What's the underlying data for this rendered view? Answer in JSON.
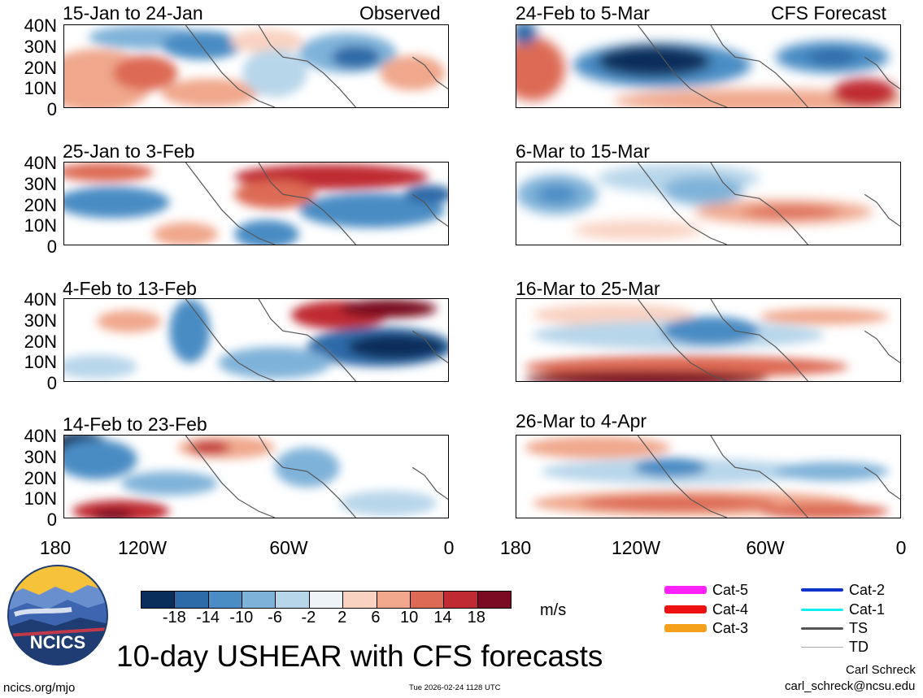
{
  "panels": [
    {
      "label": "15-Jan to 24-Jan",
      "corner": "Observed"
    },
    {
      "label": "24-Feb to 5-Mar",
      "corner": "CFS Forecast"
    },
    {
      "label": "25-Jan to 3-Feb",
      "corner": ""
    },
    {
      "label": "6-Mar to 15-Mar",
      "corner": ""
    },
    {
      "label": "4-Feb to 13-Feb",
      "corner": ""
    },
    {
      "label": "16-Mar to 25-Mar",
      "corner": ""
    },
    {
      "label": "14-Feb to 23-Feb",
      "corner": ""
    },
    {
      "label": "26-Mar to 4-Apr",
      "corner": ""
    }
  ],
  "yaxis": [
    "40N",
    "30N",
    "20N",
    "10N",
    "0"
  ],
  "xaxis": [
    "180",
    "120W",
    "60W",
    "0"
  ],
  "colorbar": {
    "ticks": [
      "-18",
      "-14",
      "-10",
      "-6",
      "-2",
      "2",
      "6",
      "10",
      "14",
      "18"
    ],
    "units": "m/s",
    "colors": [
      "#0a2e5c",
      "#2d6aa8",
      "#4a8cc4",
      "#7fb2d9",
      "#b8d6ea",
      "#eef3f7",
      "#f9d2c1",
      "#f0a78c",
      "#dd6a55",
      "#c02a32",
      "#7a0b22"
    ]
  },
  "legend": {
    "storm_categories": [
      {
        "label": "Cat-5",
        "color": "#ff22ff"
      },
      {
        "label": "Cat-4",
        "color": "#ee1111"
      },
      {
        "label": "Cat-3",
        "color": "#f5a11b"
      },
      {
        "label": "Cat-2",
        "color": "#1133cc"
      },
      {
        "label": "Cat-1",
        "color": "#11eeee"
      },
      {
        "label": "TS",
        "color": "#555555"
      },
      {
        "label": "TD",
        "color": "#aaaaaa"
      }
    ]
  },
  "logo": {
    "text": "NCICS"
  },
  "title": "10-day USHEAR with CFS forecasts",
  "footer": {
    "url": "ncics.org/mjo",
    "timestamp": "Tue 2026-02-24 1128 UTC",
    "author": "Carl Schreck",
    "email": "carl_schreck@ncsu.edu"
  }
}
